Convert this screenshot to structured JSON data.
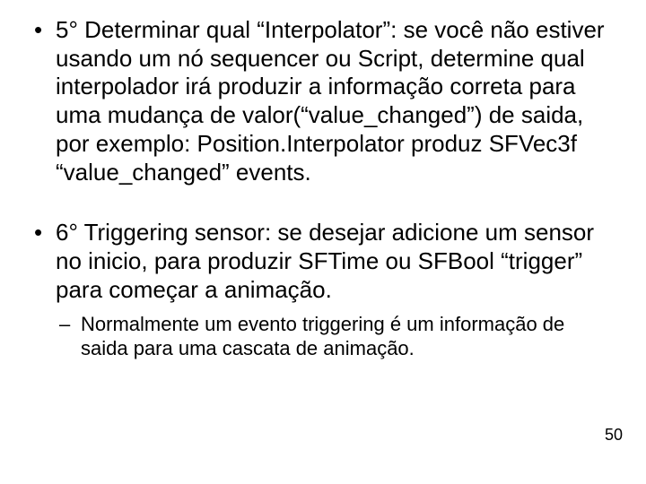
{
  "background_color": "#ffffff",
  "text_color": "#000000",
  "font_family": "Arial",
  "bullets": [
    {
      "text": "5° Determinar qual “Interpolator”: se você não estiver usando um nó sequencer ou Script, determine qual interpolador irá produzir a informação correta para uma mudança de valor(“value_changed”) de saida, por exemplo: Position.Interpolator produz SFVec3f “value_changed” events.",
      "font_size_pt": 26,
      "sub": []
    },
    {
      "text": "6° Triggering sensor: se desejar adicione um sensor no inicio, para produzir SFTime ou SFBool “trigger” para começar a animação.",
      "font_size_pt": 26,
      "sub": [
        {
          "text": "Normalmente um evento triggering  é um informação de saida para uma cascata de animação.",
          "font_size_pt": 22
        }
      ]
    }
  ],
  "page_number": "50",
  "page_number_font_size_pt": 18
}
